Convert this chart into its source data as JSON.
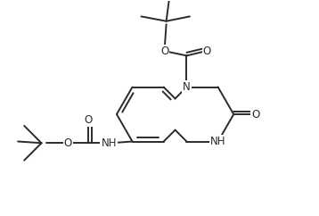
{
  "background_color": "#ffffff",
  "line_color": "#2b2b2b",
  "line_width": 1.4,
  "font_size": 8.5,
  "figsize": [
    3.58,
    2.42
  ],
  "dpi": 100,
  "xlim": [
    0,
    10
  ],
  "ylim": [
    0,
    6.8
  ]
}
